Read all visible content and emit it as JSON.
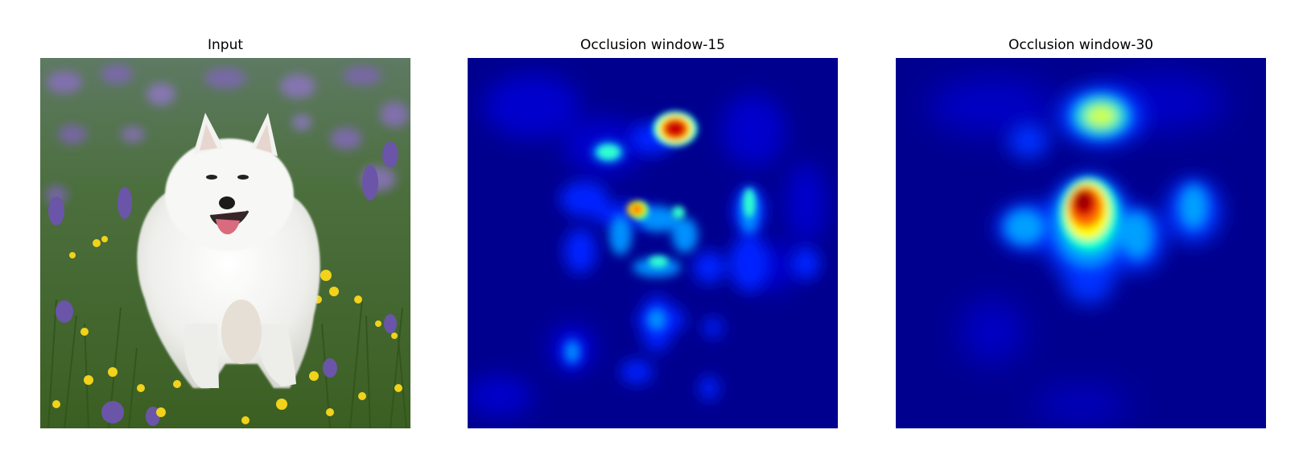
{
  "panels": [
    {
      "title": "Input",
      "kind": "photo",
      "content": "white-fluffy-dog-in-flower-field"
    },
    {
      "title": "Occlusion window-15",
      "kind": "heatmap",
      "colormap": "jet"
    },
    {
      "title": "Occlusion window-30",
      "kind": "heatmap",
      "colormap": "jet"
    }
  ],
  "colors": {
    "heatmap_background": "#00008f",
    "jet_blue": "#0000ff",
    "jet_cyan": "#00ffff",
    "jet_yellow": "#ffff00",
    "jet_red": "#ff0000",
    "jet_dark_red": "#800000",
    "grass_green": "#4f7a2c",
    "flower_purple": "#7a63b8",
    "flower_yellow": "#f4d219",
    "dog_white": "#f4f4f2"
  }
}
